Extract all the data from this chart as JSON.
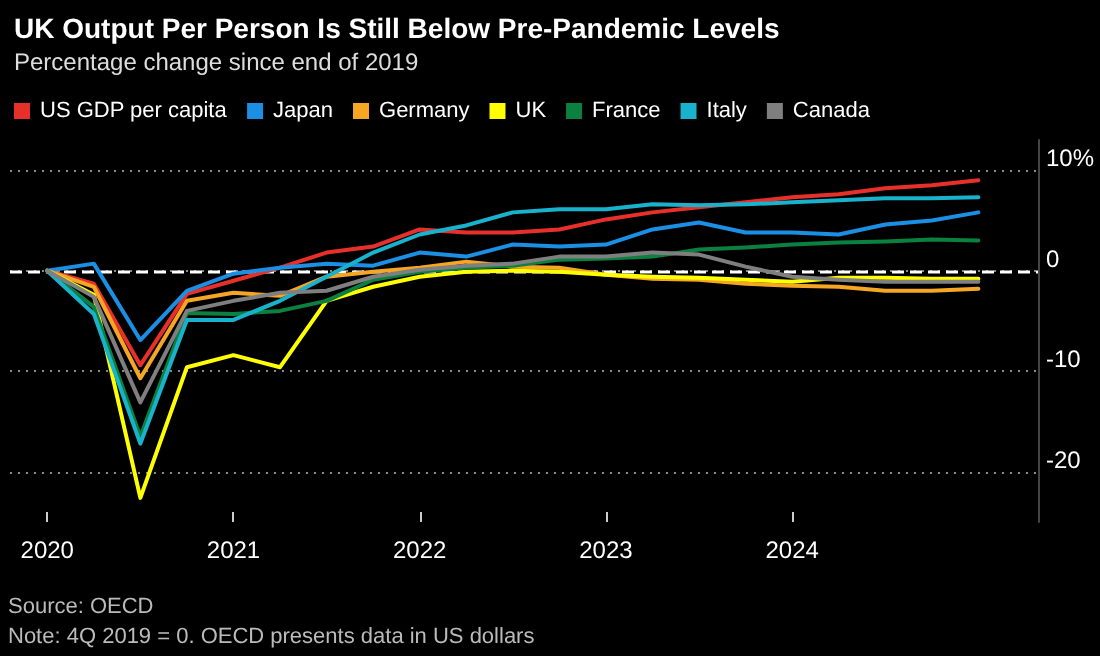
{
  "chart_data": {
    "type": "line",
    "title": "UK Output Per Person Is Still Below Pre-Pandemic Levels",
    "subtitle": "Percentage change since end of 2019",
    "x": [
      2020,
      2020.25,
      2020.5,
      2020.75,
      2021,
      2021.25,
      2021.5,
      2021.75,
      2022,
      2022.25,
      2022.5,
      2022.75,
      2023,
      2023.25,
      2023.5,
      2023.75,
      2024,
      2024.25,
      2024.5,
      2024.75,
      2025
    ],
    "series": [
      {
        "name": "US GDP per capita",
        "color": "#e8302b",
        "values": [
          0,
          -1.3,
          -9.4,
          -2.3,
          -1.0,
          0.3,
          1.8,
          2.4,
          4.1,
          3.8,
          3.8,
          4.1,
          5.1,
          5.8,
          6.3,
          6.8,
          7.3,
          7.6,
          8.2,
          8.5,
          9.0
        ]
      },
      {
        "name": "Japan",
        "color": "#1a8fe3",
        "values": [
          0,
          0.7,
          -6.9,
          -2.0,
          -0.3,
          0.3,
          0.7,
          0.5,
          1.8,
          1.4,
          2.6,
          2.4,
          2.6,
          4.1,
          4.8,
          3.8,
          3.8,
          3.6,
          4.6,
          5.0,
          5.8
        ]
      },
      {
        "name": "Germany",
        "color": "#f5a623",
        "values": [
          0,
          -1.6,
          -10.7,
          -3.0,
          -2.2,
          -2.5,
          -0.6,
          -0.1,
          0.3,
          0.9,
          0.4,
          0.3,
          -0.4,
          -0.8,
          -0.9,
          -1.3,
          -1.5,
          -1.6,
          -2.0,
          -2.0,
          -1.8
        ]
      },
      {
        "name": "UK",
        "color": "#ffff00",
        "values": [
          0,
          -2.4,
          -22.6,
          -9.6,
          -8.4,
          -9.6,
          -3.0,
          -1.6,
          -0.6,
          -0.1,
          0,
          -0.1,
          -0.4,
          -0.6,
          -0.7,
          -0.9,
          -1.1,
          -0.7,
          -0.7,
          -0.8,
          -0.8
        ]
      },
      {
        "name": "France",
        "color": "#0b8040",
        "values": [
          0,
          -3.6,
          -16.5,
          -4.2,
          -4.3,
          -4.0,
          -3.0,
          -0.9,
          -0.1,
          0.3,
          0.5,
          1.1,
          1.2,
          1.4,
          2.1,
          2.3,
          2.6,
          2.8,
          2.9,
          3.1,
          3.0
        ]
      },
      {
        "name": "Italy",
        "color": "#19b2cc",
        "values": [
          0,
          -4.3,
          -17.2,
          -4.9,
          -4.9,
          -3.0,
          -0.6,
          1.8,
          3.6,
          4.5,
          5.8,
          6.1,
          6.1,
          6.6,
          6.5,
          6.6,
          6.8,
          7.0,
          7.2,
          7.2,
          7.3
        ]
      },
      {
        "name": "Canada",
        "color": "#7f7f7f",
        "values": [
          0,
          -2.6,
          -13.1,
          -4.0,
          -3.0,
          -2.2,
          -2.0,
          -0.6,
          0.1,
          0.5,
          0.7,
          1.4,
          1.4,
          1.8,
          1.6,
          0.4,
          -0.6,
          -0.9,
          -1.1,
          -1.1,
          -1.1
        ]
      }
    ],
    "xlim": [
      2019.8,
      2025.32
    ],
    "xticks": [
      2020,
      2021,
      2022,
      2023,
      2024
    ],
    "ylim": [
      -25,
      13
    ],
    "yticks": [
      {
        "value": 10,
        "label": "10%"
      },
      0,
      -10,
      -20
    ],
    "ref_lines": [
      {
        "axis": "y",
        "value": 0,
        "color": "#ffffff",
        "line_style": "dashed"
      }
    ],
    "grid": "y",
    "legend": "top left",
    "marker": "none",
    "line_style": "solid",
    "annotations": [
      "Source: OECD",
      "Note: 4Q 2019 = 0. OECD presents data in US dollars"
    ]
  }
}
